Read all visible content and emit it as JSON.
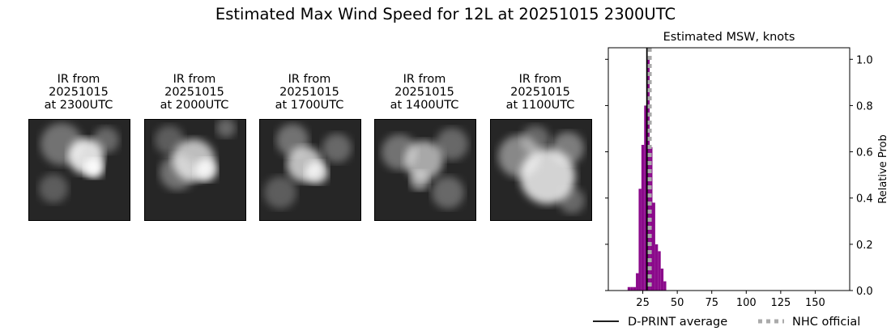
{
  "title": "Estimated Max Wind Speed for 12L at 20251015 2300UTC",
  "ir_panels": [
    {
      "line1": "IR from",
      "line2": "20251015",
      "line3": "at 2300UTC"
    },
    {
      "line1": "IR from",
      "line2": "20251015",
      "line3": "at 2000UTC"
    },
    {
      "line1": "IR from",
      "line2": "20251015",
      "line3": "at 1700UTC"
    },
    {
      "line1": "IR from",
      "line2": "20251015",
      "line3": "at 1400UTC"
    },
    {
      "line1": "IR from",
      "line2": "20251015",
      "line3": "at 1100UTC"
    }
  ],
  "chart_data": {
    "type": "bar",
    "title": "Estimated MSW, knots",
    "xlabel": "",
    "ylabel": "Relative Prob",
    "xlim": [
      0,
      175
    ],
    "ylim": [
      0,
      1.05
    ],
    "xticks": [
      25,
      50,
      75,
      100,
      125,
      150
    ],
    "yticks": [
      0.0,
      0.2,
      0.4,
      0.6,
      0.8,
      1.0
    ],
    "ytick_labels": [
      "0.0",
      "0.2",
      "0.4",
      "0.6",
      "0.8",
      "1.0"
    ],
    "bin_width": 2,
    "bars": [
      {
        "x": 15,
        "value": 0.015
      },
      {
        "x": 17,
        "value": 0.015
      },
      {
        "x": 19,
        "value": 0.015
      },
      {
        "x": 21,
        "value": 0.075
      },
      {
        "x": 23,
        "value": 0.44
      },
      {
        "x": 25,
        "value": 0.63
      },
      {
        "x": 27,
        "value": 0.8
      },
      {
        "x": 29,
        "value": 1.0
      },
      {
        "x": 31,
        "value": 0.62
      },
      {
        "x": 33,
        "value": 0.38
      },
      {
        "x": 35,
        "value": 0.2
      },
      {
        "x": 37,
        "value": 0.17
      },
      {
        "x": 39,
        "value": 0.095
      },
      {
        "x": 41,
        "value": 0.04
      }
    ],
    "bar_color": "#8b0a8b",
    "lines": [
      {
        "name": "D-PRINT average",
        "x": 28,
        "color": "#000000",
        "style": "solid"
      },
      {
        "name": "NHC official",
        "x": 30,
        "color": "#aaaaaa",
        "style": "dotted"
      }
    ],
    "legend": "bottom"
  }
}
